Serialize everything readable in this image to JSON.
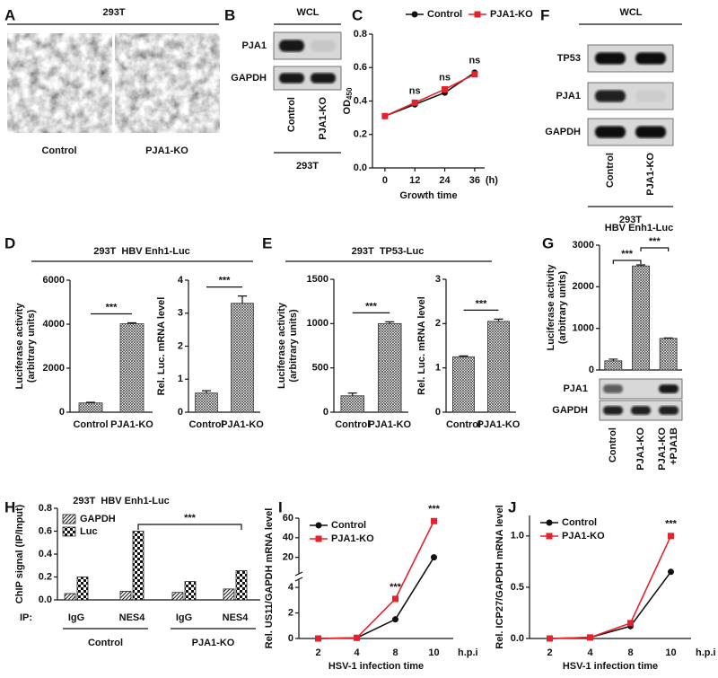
{
  "figure": {
    "A": {
      "label": "A",
      "title": "293T",
      "captions": [
        "Control",
        "PJA1-KO"
      ]
    },
    "B": {
      "label": "B",
      "header": "WCL",
      "rows": [
        "PJA1",
        "GAPDH"
      ],
      "lanes": [
        "Control",
        "PJA1-KO"
      ],
      "footer": "293T"
    },
    "C": {
      "label": "C"
    },
    "F": {
      "label": "F",
      "header": "WCL",
      "rows": [
        "TP53",
        "PJA1",
        "GAPDH"
      ],
      "lanes": [
        "Control",
        "PJA1-KO"
      ],
      "footer": "293T"
    },
    "D": {
      "label": "D",
      "header": "293T  HBV Enh1-Luc"
    },
    "E": {
      "label": "E",
      "header": "293T  TP53-Luc"
    },
    "G": {
      "label": "G",
      "rows": [
        "PJA1",
        "GAPDH"
      ]
    },
    "H": {
      "label": "H"
    },
    "I": {
      "label": "I"
    },
    "J": {
      "label": "J"
    }
  },
  "chart_data": [
    {
      "type": "line",
      "ylabel": "OD",
      "ylabel_subscript": "450",
      "xlabel": "Growth time",
      "xunit": "(h)",
      "x": [
        0,
        12,
        24,
        36
      ],
      "xlim": [
        -5,
        40
      ],
      "xticks": [
        0,
        12,
        24,
        36
      ],
      "ylim": [
        0,
        0.8
      ],
      "yticks": [
        {
          "value": 0,
          "label": "0.0"
        },
        0.2,
        0.4,
        0.6,
        0.8
      ],
      "series": [
        {
          "name": "Control",
          "color": "#111111",
          "marker": "circle",
          "values": [
            0.31,
            0.38,
            0.45,
            0.57
          ]
        },
        {
          "name": "PJA1-KO",
          "color": "#e3232c",
          "marker": "square",
          "values": [
            0.31,
            0.39,
            0.47,
            0.56
          ]
        }
      ],
      "annotations": [
        "ns",
        "ns",
        "ns"
      ],
      "legend": "top"
    },
    {
      "type": "bar",
      "ylabel": [
        "Luciferase activity",
        "(arbitrary units)"
      ],
      "categories": [
        "Control",
        "PJA1-KO"
      ],
      "values": [
        420,
        4020
      ],
      "errors": [
        30,
        40
      ],
      "ylim": [
        0,
        6000
      ],
      "yticks": [
        0,
        2000,
        4000,
        6000
      ],
      "pattern": "crosshatch",
      "annotations": [
        "***"
      ]
    },
    {
      "type": "bar",
      "ylabel": "Rel. Luc. mRNA level",
      "categories": [
        "Control",
        "PJA1-KO"
      ],
      "values": [
        0.58,
        3.3
      ],
      "errors": [
        0.07,
        0.22
      ],
      "ylim": [
        0,
        4
      ],
      "yticks": [
        0,
        1,
        2,
        3,
        4
      ],
      "pattern": "crosshatch",
      "annotations": [
        "***"
      ]
    },
    {
      "type": "bar",
      "ylabel": [
        "Luciferase activity",
        "(arbitrary units)"
      ],
      "categories": [
        "Control",
        "PJA1-KO"
      ],
      "values": [
        185,
        1000
      ],
      "errors": [
        30,
        20
      ],
      "ylim": [
        0,
        1500
      ],
      "yticks": [
        0,
        500,
        1000,
        1500
      ],
      "pattern": "crosshatch",
      "annotations": [
        "***"
      ]
    },
    {
      "type": "bar",
      "ylabel": "Rel. Luc. mRNA level",
      "categories": [
        "Control",
        "PJA1-KO"
      ],
      "values": [
        1.25,
        2.05
      ],
      "errors": [
        0.02,
        0.05
      ],
      "ylim": [
        0,
        3
      ],
      "yticks": [
        0,
        1,
        2,
        3
      ],
      "pattern": "crosshatch",
      "annotations": [
        "***"
      ]
    },
    {
      "type": "bar",
      "title": "HBV Enh1-Luc",
      "ylabel": [
        "Luciferase activity",
        "(arbitrary units)"
      ],
      "categories": [
        "Control",
        "PJA1-KO",
        "PJA1-KO +PJA1B"
      ],
      "values": [
        220,
        2500,
        760
      ],
      "errors": [
        40,
        25,
        10
      ],
      "ylim": [
        0,
        3000
      ],
      "yticks": [
        0,
        1000,
        2000,
        3000
      ],
      "pattern": "crosshatch",
      "annotations": [
        "***",
        "***"
      ]
    },
    {
      "type": "bar",
      "title": "293T  HBV Enh1-Luc",
      "ylabel": "ChIP signal (IP/Input)",
      "xlabel": "IP:",
      "categories": [
        "IgG",
        "NES4",
        "IgG",
        "NES4"
      ],
      "groups": [
        "Control",
        "PJA1-KO"
      ],
      "series": [
        {
          "name": "GAPDH",
          "pattern": "stripes",
          "values": [
            0.055,
            0.075,
            0.065,
            0.095
          ]
        },
        {
          "name": "Luc",
          "pattern": "checker",
          "values": [
            0.2,
            0.6,
            0.16,
            0.255
          ]
        }
      ],
      "ylim": [
        0,
        0.8
      ],
      "yticks": [
        {
          "value": 0,
          "label": "0.0"
        },
        0.2,
        0.4,
        0.6,
        0.8
      ],
      "legend": "top-left",
      "annotations": [
        "***"
      ]
    },
    {
      "type": "line",
      "ylabel": "Rel. US11/GAPDH mRNA level",
      "xlabel": "HSV-1 infection time",
      "xunit": "h.p.i",
      "categories": [
        "2",
        "4",
        "8",
        "10"
      ],
      "ylim": [
        0,
        60
      ],
      "axis_break": [
        4.5,
        5
      ],
      "yticks": [
        0,
        2,
        4,
        20,
        40,
        60
      ],
      "series": [
        {
          "name": "Control",
          "color": "#111111",
          "marker": "circle",
          "values": [
            0,
            0.05,
            1.5,
            20
          ]
        },
        {
          "name": "PJA1-KO",
          "color": "#e3232c",
          "marker": "square",
          "values": [
            0,
            0.05,
            3.1,
            57
          ]
        }
      ],
      "annotations": [
        "***",
        "***"
      ],
      "legend": "top-left"
    },
    {
      "type": "line",
      "ylabel": "Rel. ICP27/GAPDH mRNA level",
      "xlabel": "HSV-1 infection time",
      "xunit": "h.p.i",
      "categories": [
        "2",
        "4",
        "8",
        "10"
      ],
      "ylim": [
        0,
        1.2
      ],
      "yticks": [
        {
          "value": 0,
          "label": "0.0"
        },
        0.5,
        {
          "value": 1,
          "label": "1.0"
        }
      ],
      "series": [
        {
          "name": "Control",
          "color": "#111111",
          "marker": "circle",
          "values": [
            0,
            0.01,
            0.12,
            0.65
          ]
        },
        {
          "name": "PJA1-KO",
          "color": "#e3232c",
          "marker": "square",
          "values": [
            0,
            0.01,
            0.15,
            1.0
          ]
        }
      ],
      "annotations": [
        "***"
      ],
      "legend": "top-left"
    }
  ]
}
